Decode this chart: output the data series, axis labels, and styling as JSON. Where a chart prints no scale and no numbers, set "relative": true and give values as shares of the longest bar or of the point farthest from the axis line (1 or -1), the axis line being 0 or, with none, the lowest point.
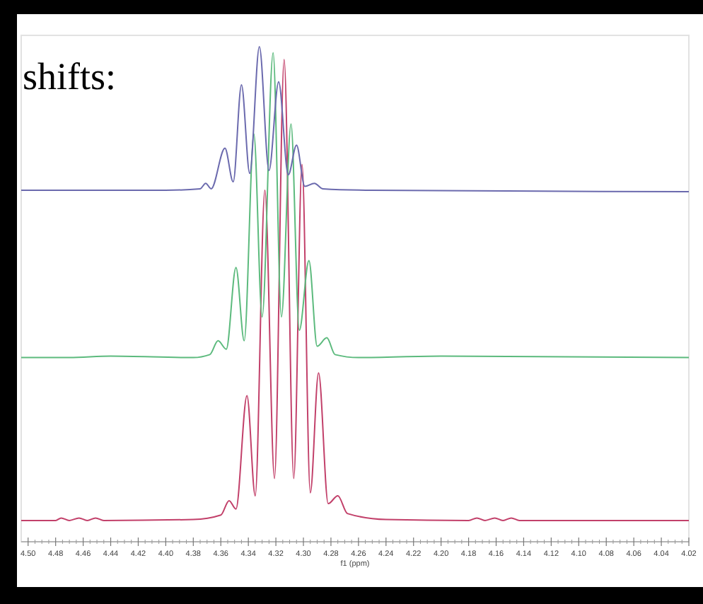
{
  "chart_data": {
    "type": "line",
    "relative": true,
    "xlabel": "f1 (ppm)",
    "annotations": [
      "shifts:"
    ],
    "marker": "none",
    "line_style": "solid",
    "xlim": [
      4.505,
      4.02
    ],
    "xticks": [
      {
        "value": 4.5,
        "label": "4.50"
      },
      {
        "value": 4.48,
        "label": "4.48"
      },
      {
        "value": 4.46,
        "label": "4.46"
      },
      {
        "value": 4.44,
        "label": "4.44"
      },
      {
        "value": 4.42,
        "label": "4.42"
      },
      {
        "value": 4.4,
        "label": "4.40"
      },
      {
        "value": 4.38,
        "label": "4.38"
      },
      {
        "value": 4.36,
        "label": "4.36"
      },
      {
        "value": 4.34,
        "label": "4.34"
      },
      {
        "value": 4.32,
        "label": "4.32"
      },
      {
        "value": 4.3,
        "label": "4.30"
      },
      {
        "value": 4.28,
        "label": "4.28"
      },
      {
        "value": 4.26,
        "label": "4.26"
      },
      {
        "value": 4.24,
        "label": "4.24"
      },
      {
        "value": 4.22,
        "label": "4.22"
      },
      {
        "value": 4.2,
        "label": "4.20"
      },
      {
        "value": 4.18,
        "label": "4.18"
      },
      {
        "value": 4.16,
        "label": "4.16"
      },
      {
        "value": 4.14,
        "label": "4.14"
      },
      {
        "value": 4.12,
        "label": "4.12"
      },
      {
        "value": 4.1,
        "label": "4.10"
      },
      {
        "value": 4.08,
        "label": "4.08"
      },
      {
        "value": 4.06,
        "label": "4.06"
      },
      {
        "value": 4.04,
        "label": "4.04"
      },
      {
        "value": 4.02,
        "label": "4.02"
      }
    ],
    "series": [
      {
        "color": "#c2406a",
        "x": [
          4.505,
          4.48,
          4.476,
          4.47,
          4.463,
          4.457,
          4.451,
          4.445,
          4.38,
          4.36,
          4.354,
          4.349,
          4.341,
          4.335,
          4.328,
          4.321,
          4.314,
          4.307,
          4.301,
          4.295,
          4.289,
          4.282,
          4.275,
          4.268,
          4.24,
          4.18,
          4.174,
          4.168,
          4.161,
          4.155,
          4.149,
          4.143,
          4.02
        ],
        "values": [
          0.043,
          0.043,
          0.048,
          0.043,
          0.048,
          0.043,
          0.048,
          0.043,
          0.045,
          0.054,
          0.083,
          0.066,
          0.295,
          0.093,
          0.71,
          0.128,
          0.974,
          0.128,
          0.762,
          0.099,
          0.341,
          0.077,
          0.093,
          0.057,
          0.045,
          0.043,
          0.048,
          0.043,
          0.048,
          0.043,
          0.048,
          0.043,
          0.043
        ]
      },
      {
        "color": "#5cba7d",
        "x": [
          4.505,
          4.47,
          4.44,
          4.38,
          4.368,
          4.362,
          4.356,
          4.349,
          4.343,
          4.336,
          4.33,
          4.322,
          4.316,
          4.309,
          4.303,
          4.296,
          4.29,
          4.283,
          4.277,
          4.26,
          4.2,
          4.02
        ],
        "values": [
          0.372,
          0.372,
          0.375,
          0.372,
          0.378,
          0.406,
          0.389,
          0.554,
          0.406,
          0.824,
          0.454,
          0.988,
          0.454,
          0.844,
          0.427,
          0.568,
          0.395,
          0.412,
          0.378,
          0.372,
          0.375,
          0.372
        ]
      },
      {
        "color": "#6b6aae",
        "x": [
          4.505,
          4.4,
          4.375,
          4.371,
          4.367,
          4.357,
          4.351,
          4.345,
          4.339,
          4.332,
          4.325,
          4.318,
          4.311,
          4.305,
          4.299,
          4.292,
          4.286,
          4.25,
          4.02
        ],
        "values": [
          0.71,
          0.71,
          0.713,
          0.724,
          0.713,
          0.795,
          0.727,
          0.923,
          0.744,
          1,
          0.75,
          0.929,
          0.741,
          0.801,
          0.718,
          0.724,
          0.713,
          0.71,
          0.707
        ]
      }
    ]
  }
}
